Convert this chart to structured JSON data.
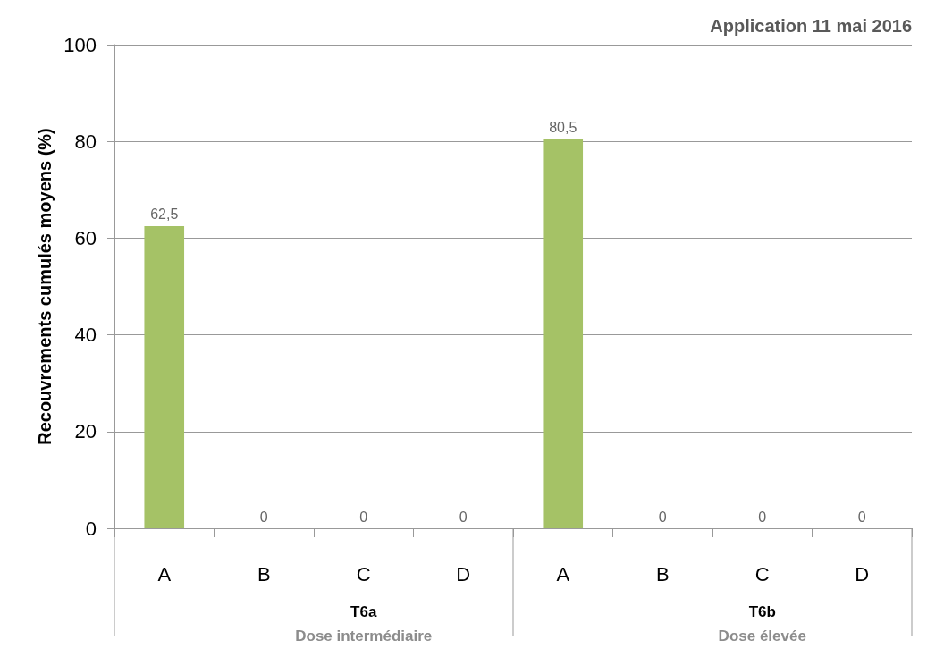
{
  "chart_data": {
    "type": "bar",
    "title": "Application 11 mai 2016",
    "ylabel": "Recouvrements cumulés moyens (%)",
    "categories": [
      "A",
      "B",
      "C",
      "D",
      "A",
      "B",
      "C",
      "D"
    ],
    "values": [
      62.5,
      0,
      0,
      0,
      80.5,
      0,
      0,
      0
    ],
    "value_labels": [
      "62,5",
      "0",
      "0",
      "0",
      "80,5",
      "0",
      "0",
      "0"
    ],
    "color": "#a5c266",
    "ylim": [
      0,
      100
    ],
    "yticks": [
      0,
      20,
      40,
      60,
      80,
      100
    ],
    "grid": "y",
    "annotations": [
      "T6a",
      "Dose intermédiaire",
      "T6b",
      "Dose élevée"
    ]
  }
}
